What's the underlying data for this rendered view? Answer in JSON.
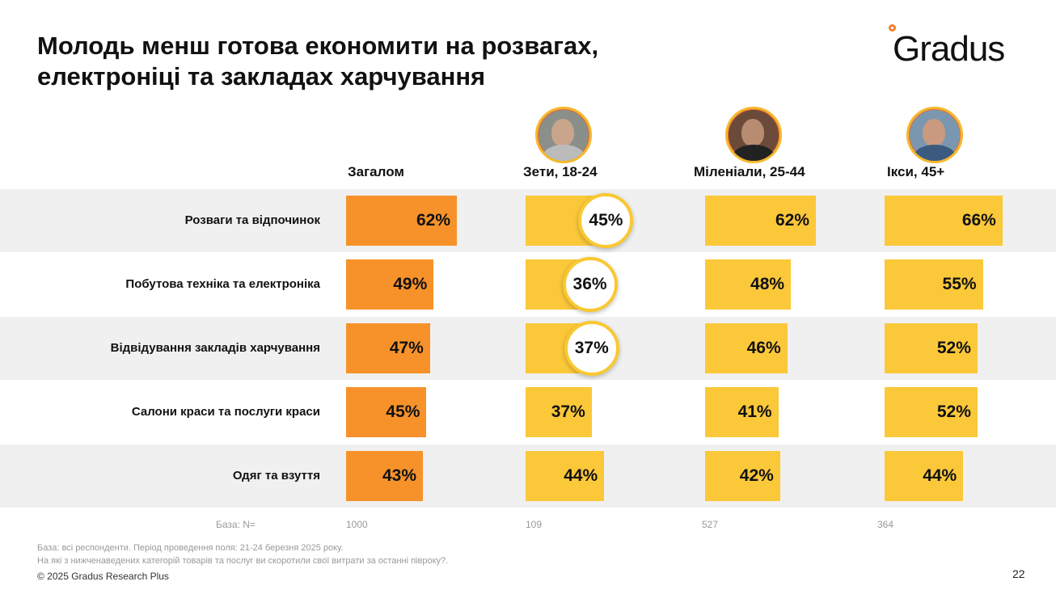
{
  "title_line1": "Молодь менш готова економити на розвагах,",
  "title_line2": "електроніці та закладах харчування",
  "logo": "Gradus",
  "colors": {
    "overall": "#f7922a",
    "group": "#fbc83a",
    "band": "#f0f0f0"
  },
  "chart_data": {
    "type": "bar",
    "orientation": "horizontal",
    "title": "Молодь менш готова економити на розвагах, електроніці та закладах харчування",
    "unit": "%",
    "categories": [
      "Розваги та відпочинок",
      "Побутова техніка та електроніка",
      "Відвідування закладів харчування",
      "Салони краси та послуги краси",
      "Одяг та взуття"
    ],
    "series": [
      {
        "name": "Загалом",
        "values": [
          62,
          49,
          47,
          45,
          43
        ],
        "labels": [
          "62%",
          "49%",
          "47%",
          "45%",
          "43%"
        ],
        "highlight": [
          false,
          false,
          false,
          false,
          false
        ]
      },
      {
        "name": "Зети, 18-24",
        "values": [
          45,
          36,
          37,
          37,
          44
        ],
        "labels": [
          "45%",
          "36%",
          "37%",
          "37%",
          "44%"
        ],
        "highlight": [
          true,
          true,
          true,
          false,
          false
        ]
      },
      {
        "name": "Міленіали, 25-44",
        "values": [
          62,
          48,
          46,
          41,
          42
        ],
        "labels": [
          "62%",
          "48%",
          "46%",
          "41%",
          "42%"
        ],
        "highlight": [
          false,
          false,
          false,
          false,
          false
        ]
      },
      {
        "name": "Ікси, 45+",
        "values": [
          66,
          55,
          52,
          52,
          44
        ],
        "labels": [
          "66%",
          "55%",
          "52%",
          "52%",
          "44%"
        ],
        "highlight": [
          false,
          false,
          false,
          false,
          false
        ]
      }
    ],
    "xlim": [
      0,
      100
    ],
    "base_label": "База: N=",
    "base_n": [
      "1000",
      "109",
      "527",
      "364"
    ]
  },
  "footnote1": "База: всі респонденти. Період проведення поля: 21-24 березня 2025 року.",
  "footnote2": "На які з нижченаведених категорій товарів та послуг ви скоротили свої витрати за останні півроку?.",
  "copyright": "© 2025 Gradus Research Plus",
  "page_number": "22"
}
